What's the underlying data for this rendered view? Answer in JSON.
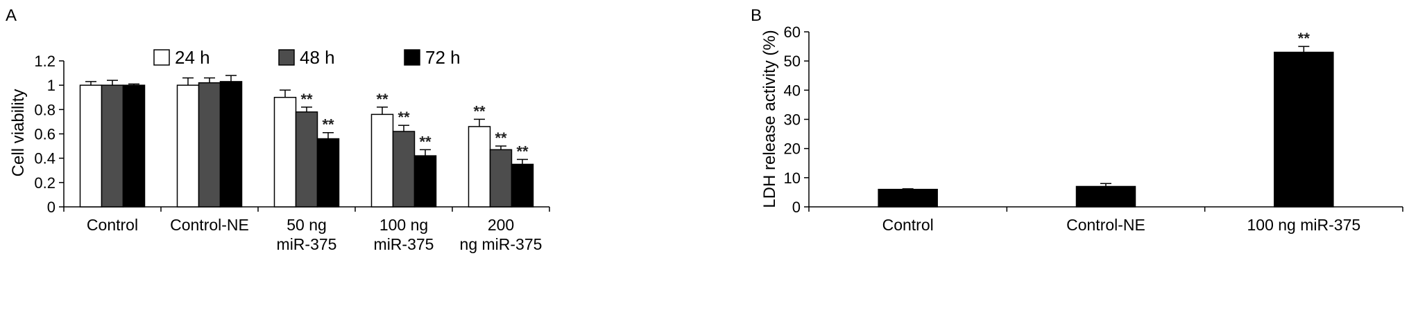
{
  "panels": [
    {
      "letter": "A"
    },
    {
      "letter": "B"
    }
  ],
  "chart_data": [
    {
      "type": "bar",
      "categories": [
        [
          "Control"
        ],
        [
          "Control-NE"
        ],
        [
          "50 ng",
          "miR-375"
        ],
        [
          "100 ng",
          "miR-375"
        ],
        [
          "200",
          "ng miR-375"
        ]
      ],
      "series": [
        {
          "name": "24 h",
          "color": "#ffffff",
          "values": [
            1.0,
            1.0,
            0.9,
            0.76,
            0.66
          ],
          "errors": [
            0.03,
            0.06,
            0.06,
            0.06,
            0.06
          ],
          "significance": [
            "",
            "",
            "",
            "**",
            "**"
          ]
        },
        {
          "name": "48 h",
          "color": "#4d4d4d",
          "values": [
            1.0,
            1.02,
            0.78,
            0.62,
            0.47
          ],
          "errors": [
            0.04,
            0.04,
            0.04,
            0.05,
            0.03
          ],
          "significance": [
            "",
            "",
            "**",
            "**",
            "**"
          ]
        },
        {
          "name": "72 h",
          "color": "#000000",
          "values": [
            1.0,
            1.03,
            0.56,
            0.42,
            0.35
          ],
          "errors": [
            0.01,
            0.05,
            0.05,
            0.05,
            0.04
          ],
          "significance": [
            "",
            "",
            "**",
            "**",
            "**"
          ]
        }
      ],
      "ylabel": "Cell viability",
      "ylim": [
        0,
        1.2
      ],
      "yticks": [
        "0",
        "0.2",
        "0.4",
        "0.6",
        "0.8",
        "1",
        "1.2"
      ],
      "legend_position": "top"
    },
    {
      "type": "bar",
      "categories": [
        [
          "Control"
        ],
        [
          "Control-NE"
        ],
        [
          "100 ng miR-375"
        ]
      ],
      "series": [
        {
          "color": "#000000",
          "values": [
            6,
            7,
            53
          ],
          "errors": [
            0.2,
            1.0,
            2.0
          ],
          "significance": [
            "",
            "",
            "**"
          ]
        }
      ],
      "ylabel": "LDH release activity (%)",
      "ylim": [
        0,
        60
      ],
      "yticks": [
        "0",
        "10",
        "20",
        "30",
        "40",
        "50",
        "60"
      ]
    }
  ]
}
